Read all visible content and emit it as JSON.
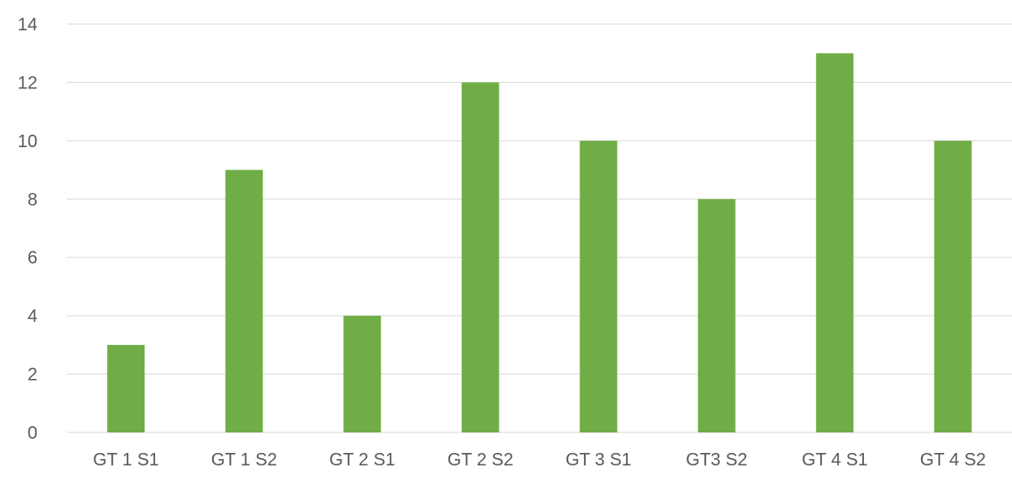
{
  "chart_data": {
    "type": "bar",
    "categories": [
      "GT 1 S1",
      "GT 1 S2",
      "GT 2 S1",
      "GT 2 S2",
      "GT 3 S1",
      "GT3 S2",
      "GT 4 S1",
      "GT 4 S2"
    ],
    "values": [
      3,
      9,
      4,
      12,
      10,
      8,
      13,
      10
    ],
    "title": "",
    "xlabel": "",
    "ylabel": "",
    "ylim": [
      0,
      14
    ],
    "yticks": [
      0,
      2,
      4,
      6,
      8,
      10,
      12,
      14
    ],
    "grid": true,
    "legend": "none",
    "colors": {
      "bar": "#70ad47",
      "grid": "#d9d9d9",
      "tick_text": "#595959"
    }
  }
}
